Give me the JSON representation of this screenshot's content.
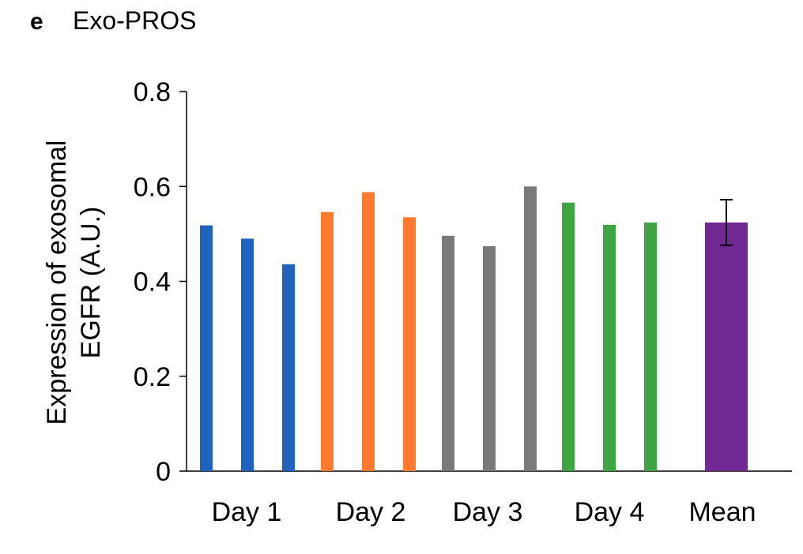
{
  "panel_letter": "e",
  "chart_data": {
    "type": "bar",
    "title": "Exo-PROS",
    "xlabel": "",
    "ylabel_lines": [
      "Expression of exosomal",
      "EGFR (A.U.)"
    ],
    "ylim": [
      0,
      0.8
    ],
    "yticks": [
      {
        "value": 0,
        "label": "0"
      },
      {
        "value": 0.2,
        "label": "0.2"
      },
      {
        "value": 0.4,
        "label": "0.4"
      },
      {
        "value": 0.6,
        "label": "0.6"
      },
      {
        "value": 0.8,
        "label": "0.8"
      }
    ],
    "groups": [
      {
        "label": "Day 1",
        "color": "#1f63be",
        "values": [
          0.518,
          0.49,
          0.436
        ]
      },
      {
        "label": "Day 2",
        "color": "#ff7a2e",
        "values": [
          0.546,
          0.588,
          0.535
        ]
      },
      {
        "label": "Day 3",
        "color": "#7a7a7a",
        "values": [
          0.496,
          0.474,
          0.6
        ]
      },
      {
        "label": "Day 4",
        "color": "#3ea542",
        "values": [
          0.566,
          0.519,
          0.524
        ]
      },
      {
        "label": "Mean",
        "color": "#722893",
        "values": [
          0.524
        ],
        "error": 0.048
      }
    ],
    "grid": false
  }
}
